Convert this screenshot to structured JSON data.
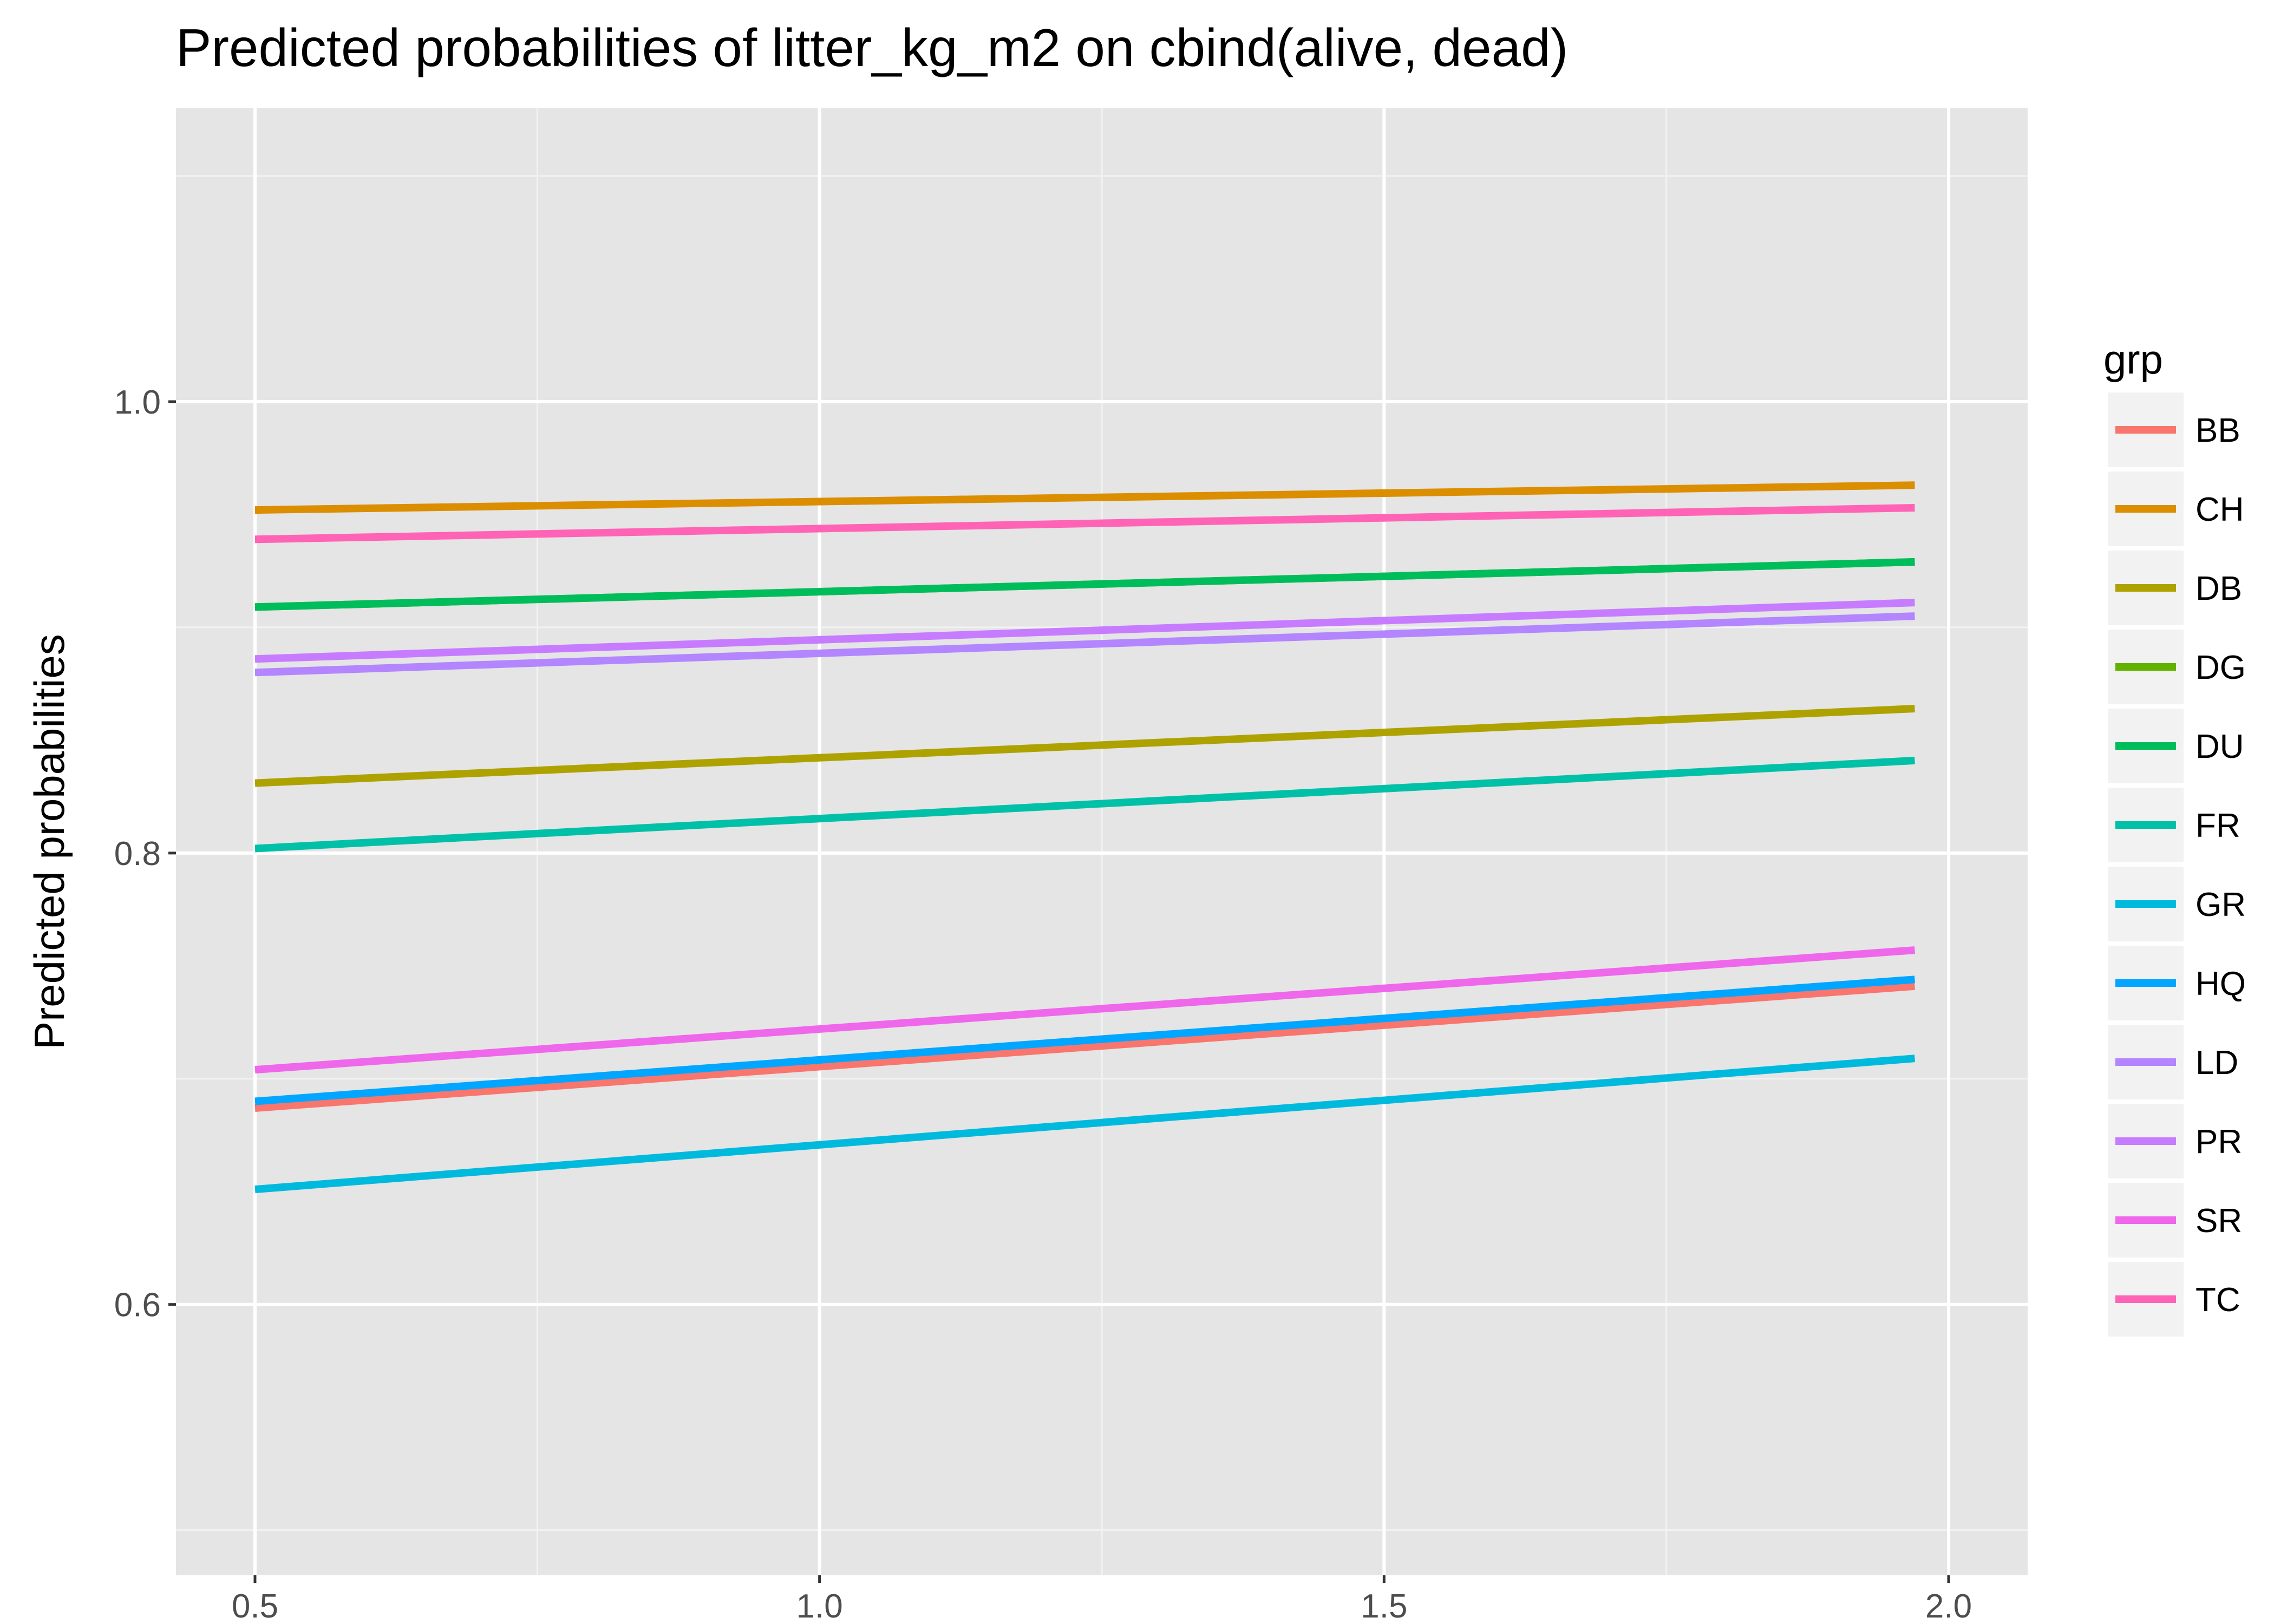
{
  "chart_data": {
    "type": "line",
    "title": "Predicted probabilities of litter_kg_m2 on cbind(alive, dead)",
    "xlabel": "",
    "ylabel": "Predicted probabilities",
    "xlim": [
      0.43,
      2.07
    ],
    "ylim": [
      0.48,
      1.13
    ],
    "x_ticks": [
      0.5,
      1.0,
      1.5,
      2.0
    ],
    "x_tick_labels": [
      "0.5",
      "1.0",
      "1.5",
      "2.0"
    ],
    "y_ticks": [
      0.6,
      0.8,
      1.0
    ],
    "y_tick_labels": [
      "0.6",
      "0.8",
      "1.0"
    ],
    "grid": true,
    "legend": {
      "title": "grp",
      "position": "right"
    },
    "x": [
      0.5,
      1.97
    ],
    "series": [
      {
        "name": "BB",
        "color": "#F8766D",
        "values": [
          0.687,
          0.741
        ]
      },
      {
        "name": "CH",
        "color": "#DB8E00",
        "values": [
          0.952,
          0.963
        ]
      },
      {
        "name": "DB",
        "color": "#AEA200",
        "values": [
          0.831,
          0.864
        ]
      },
      {
        "name": "DG",
        "color": "#64B200",
        "values": [
          0.909,
          0.929
        ]
      },
      {
        "name": "DU",
        "color": "#00BD5C",
        "values": [
          0.909,
          0.929
        ]
      },
      {
        "name": "FR",
        "color": "#00C1A7",
        "values": [
          0.802,
          0.841
        ]
      },
      {
        "name": "GR",
        "color": "#00BADE",
        "values": [
          0.651,
          0.709
        ]
      },
      {
        "name": "HQ",
        "color": "#00A6FF",
        "values": [
          0.69,
          0.744
        ]
      },
      {
        "name": "LD",
        "color": "#B385FF",
        "values": [
          0.88,
          0.905
        ]
      },
      {
        "name": "PR",
        "color": "#C77CFF",
        "values": [
          0.886,
          0.911
        ]
      },
      {
        "name": "SR",
        "color": "#EF67EB",
        "values": [
          0.704,
          0.757
        ]
      },
      {
        "name": "TC",
        "color": "#FF63B6",
        "values": [
          0.939,
          0.953
        ]
      }
    ]
  }
}
